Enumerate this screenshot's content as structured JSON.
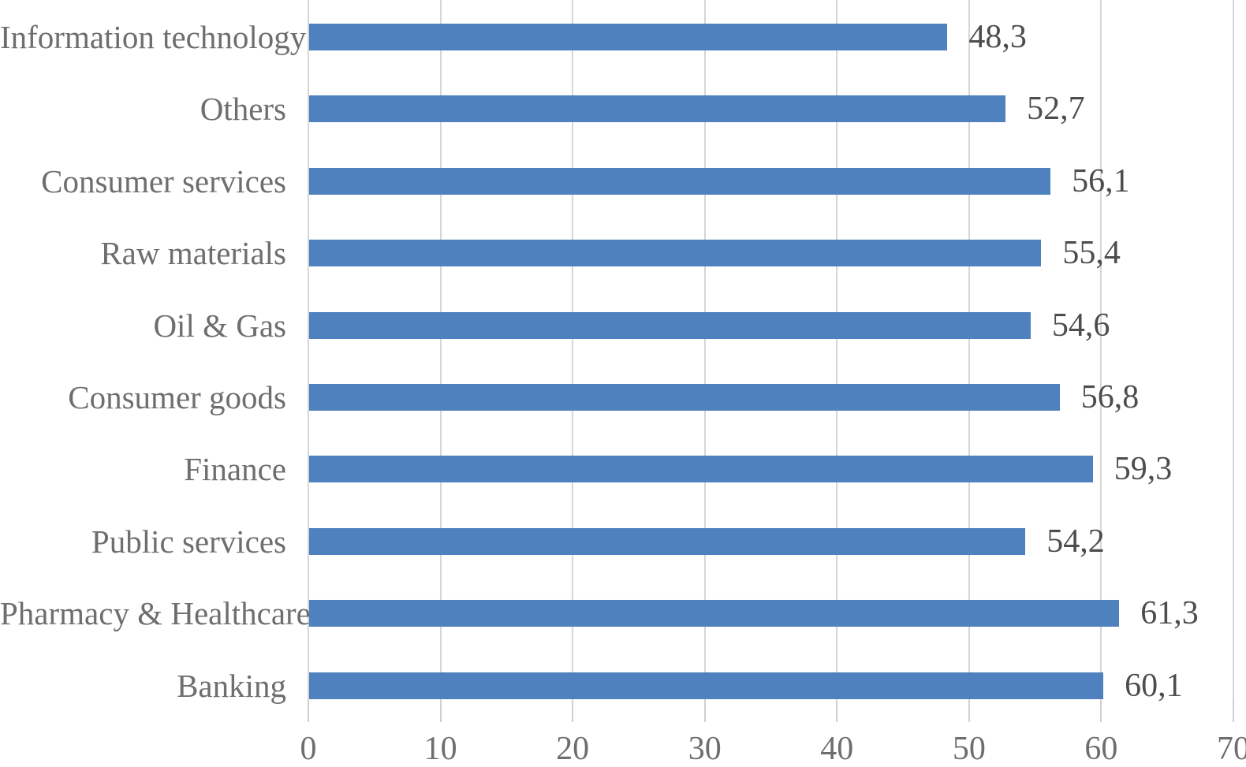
{
  "chart_data": {
    "type": "bar",
    "orientation": "horizontal",
    "title": "",
    "xlabel": "",
    "ylabel": "",
    "categories": [
      "Information technology",
      "Others",
      "Consumer services",
      "Raw materials",
      "Oil & Gas",
      "Consumer goods",
      "Finance",
      "Public services",
      "Pharmacy & Healthcare",
      "Banking"
    ],
    "values": [
      48.3,
      52.7,
      56.1,
      55.4,
      54.6,
      56.8,
      59.3,
      54.2,
      61.3,
      60.1
    ],
    "value_labels": [
      "48,3",
      "52,7",
      "56,1",
      "55,4",
      "54,6",
      "56,8",
      "59,3",
      "54,2",
      "61,3",
      "60,1"
    ],
    "decimal_separator": ",",
    "x_ticks": [
      0,
      10,
      20,
      30,
      40,
      50,
      60,
      70
    ],
    "xlim": [
      0,
      70
    ],
    "grid": "vertical-only",
    "legend": "none",
    "colors": {
      "bar": "#4E81BD",
      "gridline": "#D6D6D6",
      "tick_mark": "#D0D0D0",
      "category_label": "#6E6E6E",
      "value_label": "#4D4D4D",
      "tick_label": "#6E6E6E",
      "background": "#FFFFFF"
    }
  }
}
